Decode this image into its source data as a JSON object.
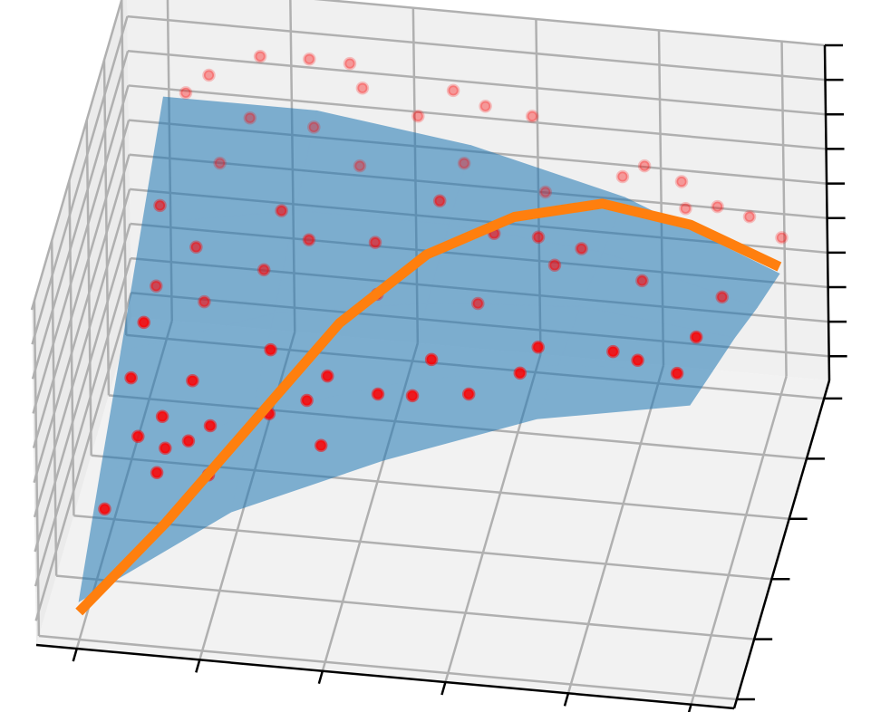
{
  "chart_data": {
    "type": "scatter3d",
    "xlim": [
      -0.33,
      5.35
    ],
    "ylim": [
      -0.15,
      5.3
    ],
    "zlim": [
      -0.7,
      9.0
    ],
    "xticks": [
      0,
      1,
      2,
      3,
      4,
      5
    ],
    "yticks": [
      0,
      1,
      2,
      3,
      4,
      5
    ],
    "zticks": [
      0,
      1,
      2,
      3,
      4,
      5,
      6,
      7,
      8,
      9
    ],
    "grid": true,
    "surface": {
      "color": "#1f77b4",
      "x": [
        0,
        1.25,
        2.5,
        3.75,
        5
      ],
      "y": [
        0,
        1.25,
        2.5,
        3.75,
        5
      ],
      "z": [
        [
          0.4,
          3.4,
          5.3,
          6.9,
          7.7
        ],
        [
          1.9,
          4.1,
          5.4,
          6.3,
          6.5
        ],
        [
          3.3,
          4.8,
          5.5,
          5.8,
          5.3
        ],
        [
          4.8,
          5.6,
          5.6,
          5.2,
          4.0
        ],
        [
          6.3,
          6.3,
          5.7,
          4.6,
          2.8
        ]
      ]
    },
    "scatter": {
      "color": "#ff0000",
      "x": [
        0.87,
        1.27,
        1.6,
        0.45,
        0.26,
        1.7,
        2.44,
        2.7,
        3.08,
        3.99,
        3.81,
        4.29,
        4.58,
        4.84,
        5.1,
        2.15,
        0.78,
        1.3,
        0.53,
        2.52,
        1.67,
        3.18,
        4.32,
        0.28,
        1.27,
        2.56,
        1.49,
        0.57,
        2.03,
        3.0,
        3.36,
        3.71,
        3.49,
        1.12,
        0.24,
        2.04,
        2.86,
        4.2,
        4.85,
        0.63,
        0.42,
        1.45,
        2.76,
        3.63,
        4.24,
        4.76,
        0.81,
        1.91,
        2.32,
        3.06,
        1.74,
        0.56,
        0.95,
        1.43,
        0.36,
        0.77,
        1.85,
        0.58,
        0.51,
        0.93,
        0.08,
        0.31,
        2.6,
        3.48,
        4.44,
        4.92
      ],
      "y": [
        4.48,
        4.48,
        4.48,
        4.48,
        4.48,
        4.48,
        4.48,
        4.48,
        4.48,
        4.48,
        4.48,
        4.48,
        4.48,
        4.48,
        4.48,
        4.48,
        4.48,
        4.48,
        4.48,
        4.48,
        4.48,
        4.48,
        4.48,
        2.85,
        2.85,
        2.85,
        2.85,
        2.85,
        2.85,
        2.85,
        2.85,
        2.85,
        2.85,
        2.85,
        2.85,
        2.85,
        2.85,
        2.85,
        2.85,
        2.85,
        0.94,
        0.94,
        0.94,
        0.94,
        0.94,
        0.94,
        0.94,
        0.94,
        0.94,
        0.94,
        0.94,
        0.94,
        0.94,
        0.94,
        0.94,
        0.94,
        0.94,
        0.94,
        0.94,
        0.94,
        0.94,
        0.94,
        0.94,
        0.94,
        0.94,
        0.94
      ],
      "z": [
        8.66,
        8.71,
        8.69,
        7.98,
        7.41,
        8.01,
        8.18,
        7.81,
        7.64,
        6.5,
        6.13,
        6.14,
        5.51,
        5.3,
        4.78,
        7.34,
        6.85,
        6.75,
        5.46,
        6.1,
        5.75,
        5.48,
        5.37,
        6.99,
        7.16,
        7.86,
        6.39,
        5.88,
        6.49,
        7.06,
        7.07,
        6.85,
        6.3,
        5.4,
        4.65,
        4.99,
        4.99,
        6.08,
        5.82,
        4.32,
        6.98,
        6.52,
        6.66,
        7.3,
        7.37,
        6.91,
        5.42,
        5.91,
        5.52,
        5.76,
        5.15,
        4.3,
        4.16,
        4.66,
        3.66,
        3.66,
        3.88,
        3.39,
        2.66,
        2.73,
        1.47,
        5.34,
        5.56,
        6.5,
        7.18,
        8.01
      ]
    },
    "line": {
      "color": "#ff7f0e",
      "x": [
        0,
        0.625,
        1.25,
        1.875,
        2.5,
        3.125,
        3.75,
        4.375,
        5
      ],
      "y": [
        0,
        0.625,
        1.25,
        1.875,
        2.5,
        3.125,
        3.75,
        4.375,
        5
      ],
      "z": [
        0.1,
        1.8,
        3.8,
        5.8,
        6.9,
        7.1,
        6.6,
        5.1,
        3.0
      ]
    }
  }
}
